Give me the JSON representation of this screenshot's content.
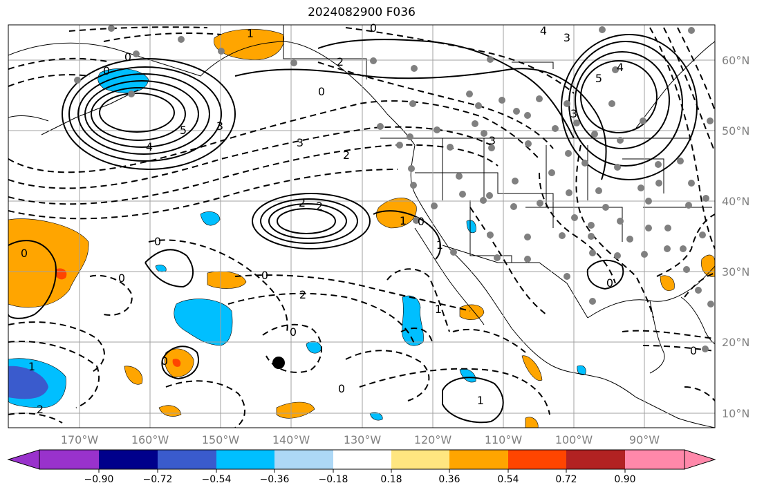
{
  "title": "2024082900 F036",
  "colors": {
    "land_line": "#000000",
    "grid": "#a0a0a0",
    "tick_label": "#808080",
    "station": "#808080",
    "contour": "#000000"
  },
  "axes": {
    "lon_labels": [
      "170°W",
      "160°W",
      "150°W",
      "140°W",
      "130°W",
      "120°W",
      "110°W",
      "100°W",
      "90°W"
    ],
    "lat_labels": [
      "60°N",
      "50°N",
      "40°N",
      "30°N",
      "20°N",
      "10°N"
    ]
  },
  "colorbar": {
    "colors": [
      "#9932cc",
      "#00008b",
      "#3a5bcd",
      "#00bfff",
      "#add8f6",
      "#ffffff",
      "#ffe680",
      "#ffa500",
      "#ff4500",
      "#b22222",
      "#ff88aa"
    ],
    "tick_labels": [
      "−0.90",
      "−0.72",
      "−0.54",
      "−0.36",
      "−0.18",
      "0.18",
      "0.36",
      "0.54",
      "0.72",
      "0.90"
    ]
  },
  "contour_labels": {
    "c0a": "0",
    "c1a": "1",
    "c2a": "2",
    "c0b": "0",
    "c4a": "4",
    "c5a": "5",
    "c2b": "2",
    "c3a": "3",
    "c2c": "2",
    "c4b": "4",
    "c3b": "3",
    "c0c": "0",
    "c3c": "3",
    "c2d": "2",
    "c3d": "3",
    "c2e": "2",
    "c0d": "0",
    "c1b": "1",
    "c0e": "0",
    "c2f": "2",
    "c0f": "0",
    "c0g": "0",
    "c1c": "1",
    "c0h": "0",
    "c0i": "0",
    "c1d": "1",
    "c0j": "0",
    "c0k": "0",
    "c1e": "1",
    "c0l": "0",
    "c0m": "0",
    "c4c": "4",
    "c5b": "5",
    "c3e": "3",
    "c1f": "1",
    "c0n": "0"
  }
}
